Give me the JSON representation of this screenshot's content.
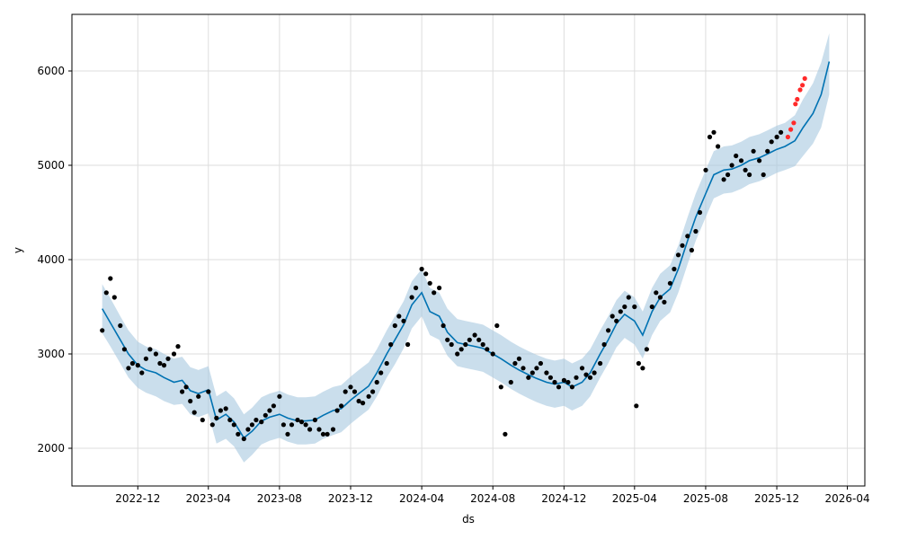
{
  "chart_data": {
    "type": "line",
    "title": "",
    "xlabel": "ds",
    "ylabel": "y",
    "xlim": [
      "2022-08-10",
      "2026-05-01"
    ],
    "ylim": [
      1600,
      6600
    ],
    "grid": true,
    "legend": "none",
    "x_tick_labels": [
      "2022-12",
      "2023-04",
      "2023-08",
      "2023-12",
      "2024-04",
      "2024-08",
      "2024-12",
      "2025-04",
      "2025-08",
      "2025-12",
      "2026-04"
    ],
    "y_tick_labels": [
      "2000",
      "3000",
      "4000",
      "5000",
      "6000"
    ],
    "colors": {
      "forecast_line": "#0072B2",
      "uncertainty_band": "#A6C8E0",
      "observed_points": "#000000",
      "highlighted_points": "#FF2A2A",
      "grid": "#dddddd"
    },
    "forecast": {
      "dates": [
        "2022-10-01",
        "2022-10-15",
        "2022-11-01",
        "2022-11-15",
        "2022-12-01",
        "2022-12-15",
        "2023-01-01",
        "2023-01-15",
        "2023-02-01",
        "2023-02-15",
        "2023-03-01",
        "2023-03-15",
        "2023-04-01",
        "2023-04-15",
        "2023-05-01",
        "2023-05-15",
        "2023-06-01",
        "2023-06-15",
        "2023-07-01",
        "2023-07-15",
        "2023-08-01",
        "2023-08-15",
        "2023-09-01",
        "2023-09-15",
        "2023-10-01",
        "2023-10-15",
        "2023-11-01",
        "2023-11-15",
        "2023-12-01",
        "2023-12-15",
        "2024-01-01",
        "2024-01-15",
        "2024-02-01",
        "2024-02-15",
        "2024-03-01",
        "2024-03-15",
        "2024-04-01",
        "2024-04-15",
        "2024-05-01",
        "2024-05-15",
        "2024-06-01",
        "2024-06-15",
        "2024-07-01",
        "2024-07-15",
        "2024-08-01",
        "2024-08-15",
        "2024-09-01",
        "2024-09-15",
        "2024-10-01",
        "2024-10-15",
        "2024-11-01",
        "2024-11-15",
        "2024-12-01",
        "2024-12-15",
        "2025-01-01",
        "2025-01-15",
        "2025-02-01",
        "2025-02-15",
        "2025-03-01",
        "2025-03-15",
        "2025-04-01",
        "2025-04-15",
        "2025-05-01",
        "2025-05-15",
        "2025-06-01",
        "2025-06-15",
        "2025-07-01",
        "2025-07-15",
        "2025-08-01",
        "2025-08-15",
        "2025-09-01",
        "2025-09-15",
        "2025-10-01",
        "2025-10-15",
        "2025-11-01",
        "2025-11-15",
        "2025-12-01",
        "2025-12-15",
        "2026-01-01",
        "2026-01-15",
        "2026-02-01",
        "2026-02-15",
        "2026-03-01"
      ],
      "yhat": [
        3480,
        3330,
        3150,
        3000,
        2880,
        2830,
        2800,
        2750,
        2700,
        2720,
        2610,
        2580,
        2620,
        2300,
        2360,
        2280,
        2110,
        2180,
        2290,
        2330,
        2360,
        2320,
        2290,
        2290,
        2300,
        2350,
        2400,
        2420,
        2510,
        2580,
        2660,
        2800,
        3000,
        3150,
        3310,
        3520,
        3650,
        3450,
        3400,
        3230,
        3120,
        3100,
        3080,
        3060,
        3000,
        2950,
        2880,
        2830,
        2780,
        2740,
        2700,
        2680,
        2700,
        2650,
        2700,
        2800,
        3000,
        3150,
        3320,
        3420,
        3350,
        3200,
        3450,
        3600,
        3690,
        3900,
        4200,
        4450,
        4700,
        4900,
        4950,
        4960,
        5000,
        5050,
        5080,
        5120,
        5170,
        5200,
        5260,
        5400,
        5550,
        5750,
        6100
      ],
      "yhat_lower": [
        3220,
        3080,
        2900,
        2750,
        2640,
        2590,
        2550,
        2500,
        2460,
        2470,
        2360,
        2330,
        2370,
        2050,
        2100,
        2020,
        1850,
        1930,
        2040,
        2080,
        2110,
        2070,
        2040,
        2040,
        2050,
        2100,
        2140,
        2170,
        2260,
        2330,
        2410,
        2550,
        2750,
        2890,
        3060,
        3270,
        3400,
        3200,
        3150,
        2980,
        2870,
        2850,
        2830,
        2810,
        2750,
        2700,
        2630,
        2580,
        2530,
        2490,
        2450,
        2430,
        2450,
        2400,
        2450,
        2550,
        2750,
        2900,
        3070,
        3170,
        3100,
        2950,
        3200,
        3350,
        3440,
        3650,
        3950,
        4200,
        4450,
        4650,
        4700,
        4710,
        4750,
        4800,
        4830,
        4870,
        4920,
        4950,
        4990,
        5100,
        5230,
        5400,
        5750
      ],
      "yhat_upper": [
        3740,
        3590,
        3400,
        3250,
        3130,
        3080,
        3050,
        3000,
        2950,
        2970,
        2860,
        2830,
        2870,
        2550,
        2610,
        2530,
        2360,
        2430,
        2540,
        2580,
        2610,
        2570,
        2540,
        2540,
        2550,
        2600,
        2650,
        2670,
        2760,
        2830,
        2910,
        3050,
        3250,
        3400,
        3560,
        3770,
        3900,
        3700,
        3650,
        3480,
        3370,
        3350,
        3330,
        3310,
        3250,
        3200,
        3130,
        3080,
        3030,
        2990,
        2950,
        2930,
        2950,
        2900,
        2950,
        3050,
        3250,
        3400,
        3570,
        3670,
        3600,
        3450,
        3700,
        3850,
        3940,
        4150,
        4450,
        4700,
        4950,
        5150,
        5200,
        5210,
        5250,
        5300,
        5330,
        5370,
        5420,
        5450,
        5530,
        5700,
        5870,
        6090,
        6400
      ]
    },
    "observed": {
      "dates": [
        "2022-10-01",
        "2022-10-08",
        "2022-10-15",
        "2022-10-22",
        "2022-11-01",
        "2022-11-08",
        "2022-11-15",
        "2022-11-22",
        "2022-12-01",
        "2022-12-08",
        "2022-12-15",
        "2022-12-22",
        "2023-01-01",
        "2023-01-08",
        "2023-01-15",
        "2023-01-22",
        "2023-02-01",
        "2023-02-08",
        "2023-02-15",
        "2023-02-22",
        "2023-03-01",
        "2023-03-08",
        "2023-03-15",
        "2023-03-22",
        "2023-04-01",
        "2023-04-08",
        "2023-04-15",
        "2023-04-22",
        "2023-05-01",
        "2023-05-08",
        "2023-05-15",
        "2023-05-22",
        "2023-06-01",
        "2023-06-08",
        "2023-06-15",
        "2023-06-22",
        "2023-07-01",
        "2023-07-08",
        "2023-07-15",
        "2023-07-22",
        "2023-08-01",
        "2023-08-08",
        "2023-08-15",
        "2023-08-22",
        "2023-09-01",
        "2023-09-08",
        "2023-09-15",
        "2023-09-22",
        "2023-10-01",
        "2023-10-08",
        "2023-10-15",
        "2023-10-22",
        "2023-11-01",
        "2023-11-08",
        "2023-11-15",
        "2023-11-22",
        "2023-12-01",
        "2023-12-08",
        "2023-12-15",
        "2023-12-22",
        "2024-01-01",
        "2024-01-08",
        "2024-01-15",
        "2024-01-22",
        "2024-02-01",
        "2024-02-08",
        "2024-02-15",
        "2024-02-22",
        "2024-03-01",
        "2024-03-08",
        "2024-03-15",
        "2024-03-22",
        "2024-04-01",
        "2024-04-08",
        "2024-04-15",
        "2024-04-22",
        "2024-05-01",
        "2024-05-08",
        "2024-05-15",
        "2024-05-22",
        "2024-06-01",
        "2024-06-08",
        "2024-06-15",
        "2024-06-22",
        "2024-07-01",
        "2024-07-08",
        "2024-07-15",
        "2024-07-22",
        "2024-08-01",
        "2024-08-08",
        "2024-08-15",
        "2024-08-22",
        "2024-09-01",
        "2024-09-08",
        "2024-09-15",
        "2024-09-22",
        "2024-10-01",
        "2024-10-08",
        "2024-10-15",
        "2024-10-22",
        "2024-11-01",
        "2024-11-08",
        "2024-11-15",
        "2024-11-22",
        "2024-12-01",
        "2024-12-08",
        "2024-12-15",
        "2024-12-22",
        "2025-01-01",
        "2025-01-08",
        "2025-01-15",
        "2025-01-22",
        "2025-02-01",
        "2025-02-08",
        "2025-02-15",
        "2025-02-22",
        "2025-03-01",
        "2025-03-08",
        "2025-03-15",
        "2025-03-22",
        "2025-04-01",
        "2025-04-04",
        "2025-04-08",
        "2025-04-15",
        "2025-04-22",
        "2025-05-01",
        "2025-05-08",
        "2025-05-15",
        "2025-05-22",
        "2025-06-01",
        "2025-06-08",
        "2025-06-15",
        "2025-06-22",
        "2025-07-01",
        "2025-07-08",
        "2025-07-15",
        "2025-07-22",
        "2025-08-01",
        "2025-08-08",
        "2025-08-15",
        "2025-08-22",
        "2025-09-01",
        "2025-09-08",
        "2025-09-15",
        "2025-09-22",
        "2025-10-01",
        "2025-10-08",
        "2025-10-15",
        "2025-10-22",
        "2025-11-01",
        "2025-11-08",
        "2025-11-15",
        "2025-11-22",
        "2025-12-01",
        "2025-12-08"
      ],
      "values": [
        3250,
        3650,
        3800,
        3600,
        3300,
        3050,
        2850,
        2900,
        2880,
        2800,
        2950,
        3050,
        3000,
        2900,
        2880,
        2950,
        3000,
        3080,
        2600,
        2650,
        2500,
        2380,
        2550,
        2300,
        2600,
        2250,
        2320,
        2400,
        2420,
        2300,
        2250,
        2150,
        2100,
        2200,
        2250,
        2300,
        2280,
        2350,
        2400,
        2450,
        2550,
        2250,
        2150,
        2250,
        2300,
        2280,
        2250,
        2200,
        2300,
        2200,
        2150,
        2150,
        2200,
        2400,
        2450,
        2600,
        2650,
        2600,
        2500,
        2480,
        2550,
        2600,
        2700,
        2800,
        2900,
        3100,
        3300,
        3400,
        3350,
        3100,
        3600,
        3700,
        3900,
        3850,
        3750,
        3650,
        3700,
        3300,
        3150,
        3100,
        3000,
        3050,
        3100,
        3150,
        3200,
        3150,
        3100,
        3050,
        3000,
        3300,
        2650,
        2150,
        2700,
        2900,
        2950,
        2850,
        2750,
        2800,
        2850,
        2900,
        2800,
        2750,
        2700,
        2650,
        2720,
        2700,
        2650,
        2750,
        2850,
        2780,
        2750,
        2800,
        2900,
        3100,
        3250,
        3400,
        3350,
        3450,
        3500,
        3600,
        3500,
        2450,
        2900,
        2850,
        3050,
        3500,
        3650,
        3600,
        3550,
        3750,
        3900,
        4050,
        4150,
        4250,
        4100,
        4300,
        4500,
        4950,
        5300,
        5350,
        5200,
        4850,
        4900,
        5000,
        5100,
        5050,
        4950,
        4900,
        5150,
        5050,
        4900,
        5150,
        5250,
        5300,
        5350
      ]
    },
    "highlighted": {
      "dates": [
        "2025-12-20",
        "2025-12-25",
        "2025-12-30",
        "2026-01-02",
        "2026-01-05",
        "2026-01-10",
        "2026-01-14",
        "2026-01-18"
      ],
      "values": [
        5300,
        5380,
        5450,
        5650,
        5700,
        5800,
        5850,
        5920
      ]
    }
  }
}
